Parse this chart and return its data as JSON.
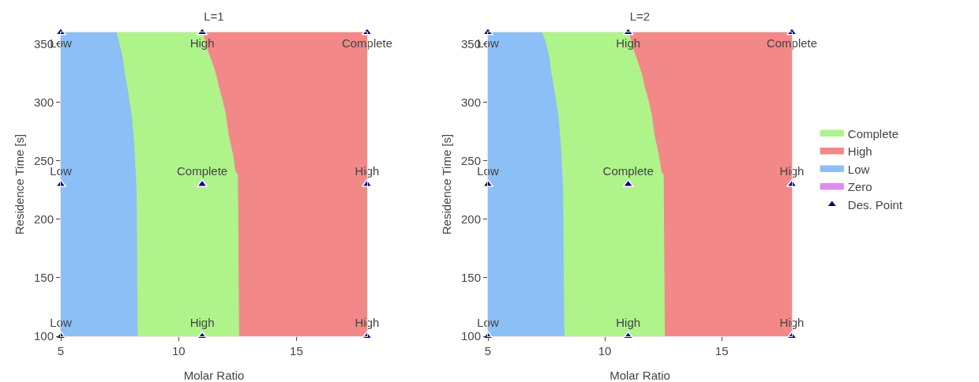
{
  "chart_data": [
    {
      "type": "area",
      "title": "L=1",
      "xlabel": "Molar Ratio",
      "ylabel": "Residence Time [s]",
      "xlim": [
        5,
        18
      ],
      "ylim": [
        100,
        360
      ],
      "xticks": [
        5,
        10,
        15
      ],
      "yticks": [
        100,
        150,
        200,
        250,
        300,
        350
      ],
      "legend": false,
      "series": [
        {
          "color": "#f38888",
          "x": [
            5,
            18
          ],
          "values": [
            360,
            360
          ]
        },
        {
          "color": "#aef48b",
          "x": [
            5,
            11.0,
            11.1,
            11.25,
            11.45,
            11.6,
            11.7,
            11.85,
            12.0,
            12.1,
            12.3,
            12.4,
            12.5,
            12.55
          ],
          "values": [
            360,
            360,
            354,
            343,
            332,
            322,
            313,
            302,
            289,
            273,
            255,
            241,
            238,
            100
          ]
        },
        {
          "color": "#8bbff5",
          "x": [
            5,
            7.35,
            7.45,
            7.6,
            7.7,
            7.85,
            8.0,
            8.1,
            8.2,
            8.25
          ],
          "values": [
            360,
            360,
            352,
            340,
            325,
            308,
            288,
            265,
            225,
            100
          ]
        },
        {
          "type": "scatter",
          "marker": "triangle",
          "color": "#00008b",
          "x": [
            5,
            11,
            18,
            5,
            11,
            18,
            5,
            11,
            18
          ],
          "values": [
            100,
            100,
            100,
            230,
            230,
            230,
            360,
            360,
            360
          ],
          "value_labels": [
            "Low",
            "High",
            "High",
            "Low",
            "Complete",
            "High",
            "Low",
            "High",
            "Complete"
          ]
        }
      ]
    },
    {
      "type": "area",
      "title": "L=2",
      "xlabel": "Molar Ratio",
      "ylabel": "Residence Time [s]",
      "xlim": [
        5,
        18
      ],
      "ylim": [
        100,
        360
      ],
      "xticks": [
        5,
        10,
        15
      ],
      "yticks": [
        100,
        150,
        200,
        250,
        300,
        350
      ],
      "legend": "right",
      "series": [
        {
          "name": "Complete",
          "color": "#aef48b",
          "x": [
            5,
            11.0,
            11.1,
            11.25,
            11.45,
            11.6,
            11.7,
            11.85,
            12.0,
            12.1,
            12.3,
            12.4,
            12.5,
            12.55
          ],
          "values": [
            360,
            360,
            354,
            343,
            332,
            322,
            313,
            302,
            289,
            273,
            255,
            241,
            238,
            100
          ]
        },
        {
          "name": "High",
          "color": "#f38888",
          "x": [
            5,
            18
          ],
          "values": [
            360,
            360
          ]
        },
        {
          "name": "Low",
          "color": "#8bbff5",
          "x": [
            5,
            7.3,
            7.45,
            7.6,
            7.7,
            7.85,
            8.0,
            8.1,
            8.2,
            8.25
          ],
          "values": [
            360,
            360,
            352,
            340,
            325,
            308,
            288,
            265,
            225,
            100
          ]
        },
        {
          "name": "Zero",
          "color": "#e08bef"
        },
        {
          "name": "Des. Point",
          "type": "scatter",
          "marker": "triangle",
          "color": "#00008b",
          "x": [
            5,
            11,
            18,
            5,
            11,
            18,
            5,
            11,
            18
          ],
          "values": [
            100,
            100,
            100,
            230,
            230,
            230,
            360,
            360,
            360
          ],
          "value_labels": [
            "Low",
            "High",
            "High",
            "Low",
            "Complete",
            "High",
            "Low",
            "High",
            "Complete"
          ]
        }
      ]
    }
  ]
}
